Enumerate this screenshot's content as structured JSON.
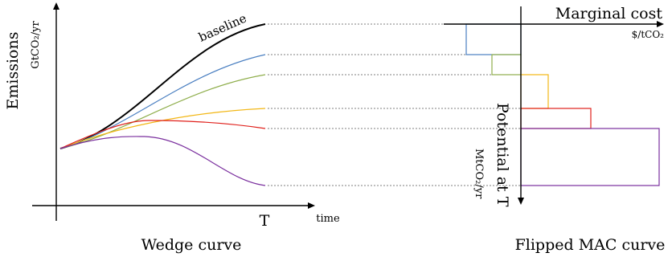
{
  "left_panel": {
    "caption": "Wedge curve",
    "y_label": "Emissions",
    "y_unit": "GtCO₂/yr",
    "x_tick": "T",
    "x_label": "time",
    "baseline_label": "baseline"
  },
  "right_panel": {
    "caption": "Flipped MAC curve",
    "x_label": "Marginal cost",
    "x_unit": "$/tCO₂",
    "y_label": "Potential at T",
    "y_unit": "MtCO₂/yr"
  },
  "colors": {
    "axis": "#000000",
    "baseline": "#000000",
    "blue": "#4a7fc1",
    "green": "#8fae4c",
    "yellow": "#f2b716",
    "red": "#e0201b",
    "purple": "#7a2f9e"
  },
  "curve_series": [
    "baseline",
    "blue",
    "green",
    "yellow",
    "red",
    "purple"
  ],
  "mac_blocks": [
    "blue",
    "green",
    "yellow",
    "red",
    "purple"
  ]
}
